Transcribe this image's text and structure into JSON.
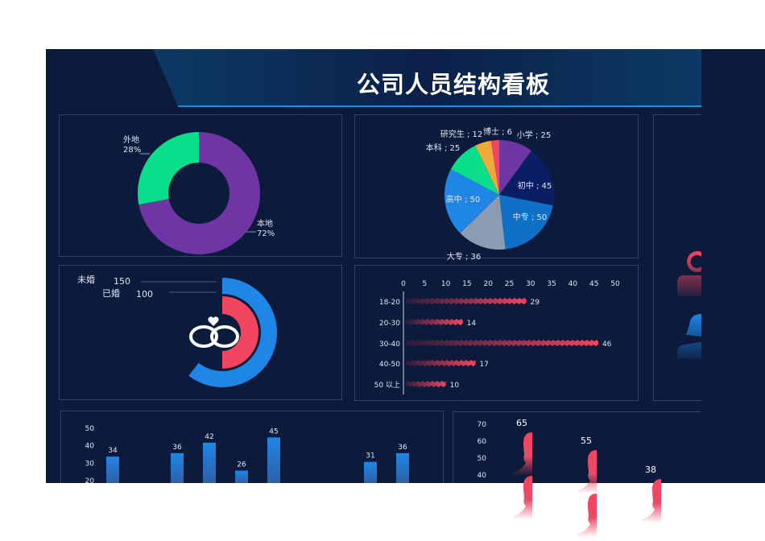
{
  "title": "公司人员结构看板",
  "colors": {
    "background": "#0c1b3b",
    "panel_border": "#2e4469",
    "accent_line": "#1a8ee0",
    "pink": "#f2455f",
    "blue": "#1f86e6",
    "purple": "#6f35a5",
    "green": "#0ade8a"
  },
  "chart_data": [
    {
      "type": "pie",
      "variant": "donut",
      "series": [
        {
          "name": "本地",
          "value": 72,
          "label": "本地",
          "pct": "72%",
          "color": "#6f35a5"
        },
        {
          "name": "外地",
          "value": 28,
          "label": "外地",
          "pct": "28%",
          "color": "#0ade8a"
        }
      ]
    },
    {
      "type": "pie",
      "series": [
        {
          "name": "小学",
          "value": 25,
          "label": "小学 ; 25",
          "color": "#6f35a5"
        },
        {
          "name": "初中",
          "value": 45,
          "label": "初中 ; 45",
          "color": "#0a1f63"
        },
        {
          "name": "中专",
          "value": 50,
          "label": "中专 ; 50",
          "color": "#0f70c8"
        },
        {
          "name": "大专",
          "value": 36,
          "label": "大专 ; 36",
          "color": "#8a9bb2"
        },
        {
          "name": "高中",
          "value": 50,
          "label": "高中 ; 50",
          "color": "#1f86e6"
        },
        {
          "name": "本科",
          "value": 25,
          "label": "本科 ; 25",
          "color": "#0ade8a"
        },
        {
          "name": "研究生",
          "value": 12,
          "label": "研究生 ; 12",
          "color": "#f0a83a"
        },
        {
          "name": "博士",
          "value": 6,
          "label": "博士 ; 6",
          "color": "#f2455f"
        }
      ]
    },
    {
      "type": "bar",
      "variant": "radial",
      "series": [
        {
          "name": "未婚",
          "value": 150,
          "color": "#1f86e6"
        },
        {
          "name": "已婚",
          "value": 100,
          "color": "#f2455f"
        }
      ]
    },
    {
      "type": "bar",
      "orientation": "horizontal",
      "categories": [
        "18-20",
        "20-30",
        "30-40",
        "40-50",
        "50 以上"
      ],
      "values": [
        29,
        14,
        46,
        17,
        10
      ],
      "xlim": [
        0,
        50
      ],
      "xticks": [
        "0",
        "5",
        "10",
        "15",
        "20",
        "25",
        "30",
        "35",
        "40",
        "45",
        "50"
      ]
    },
    {
      "type": "bar",
      "values": [
        34,
        null,
        36,
        42,
        26,
        45,
        null,
        null,
        31,
        36
      ],
      "yticks": [
        "50",
        "40",
        "30",
        "20"
      ]
    },
    {
      "type": "bar",
      "variant": "pictorial",
      "values": [
        65,
        55,
        38,
        null
      ],
      "value_labels": [
        "65",
        "55",
        "38",
        ""
      ],
      "yticks": [
        "70",
        "60",
        "50",
        "40"
      ]
    }
  ]
}
